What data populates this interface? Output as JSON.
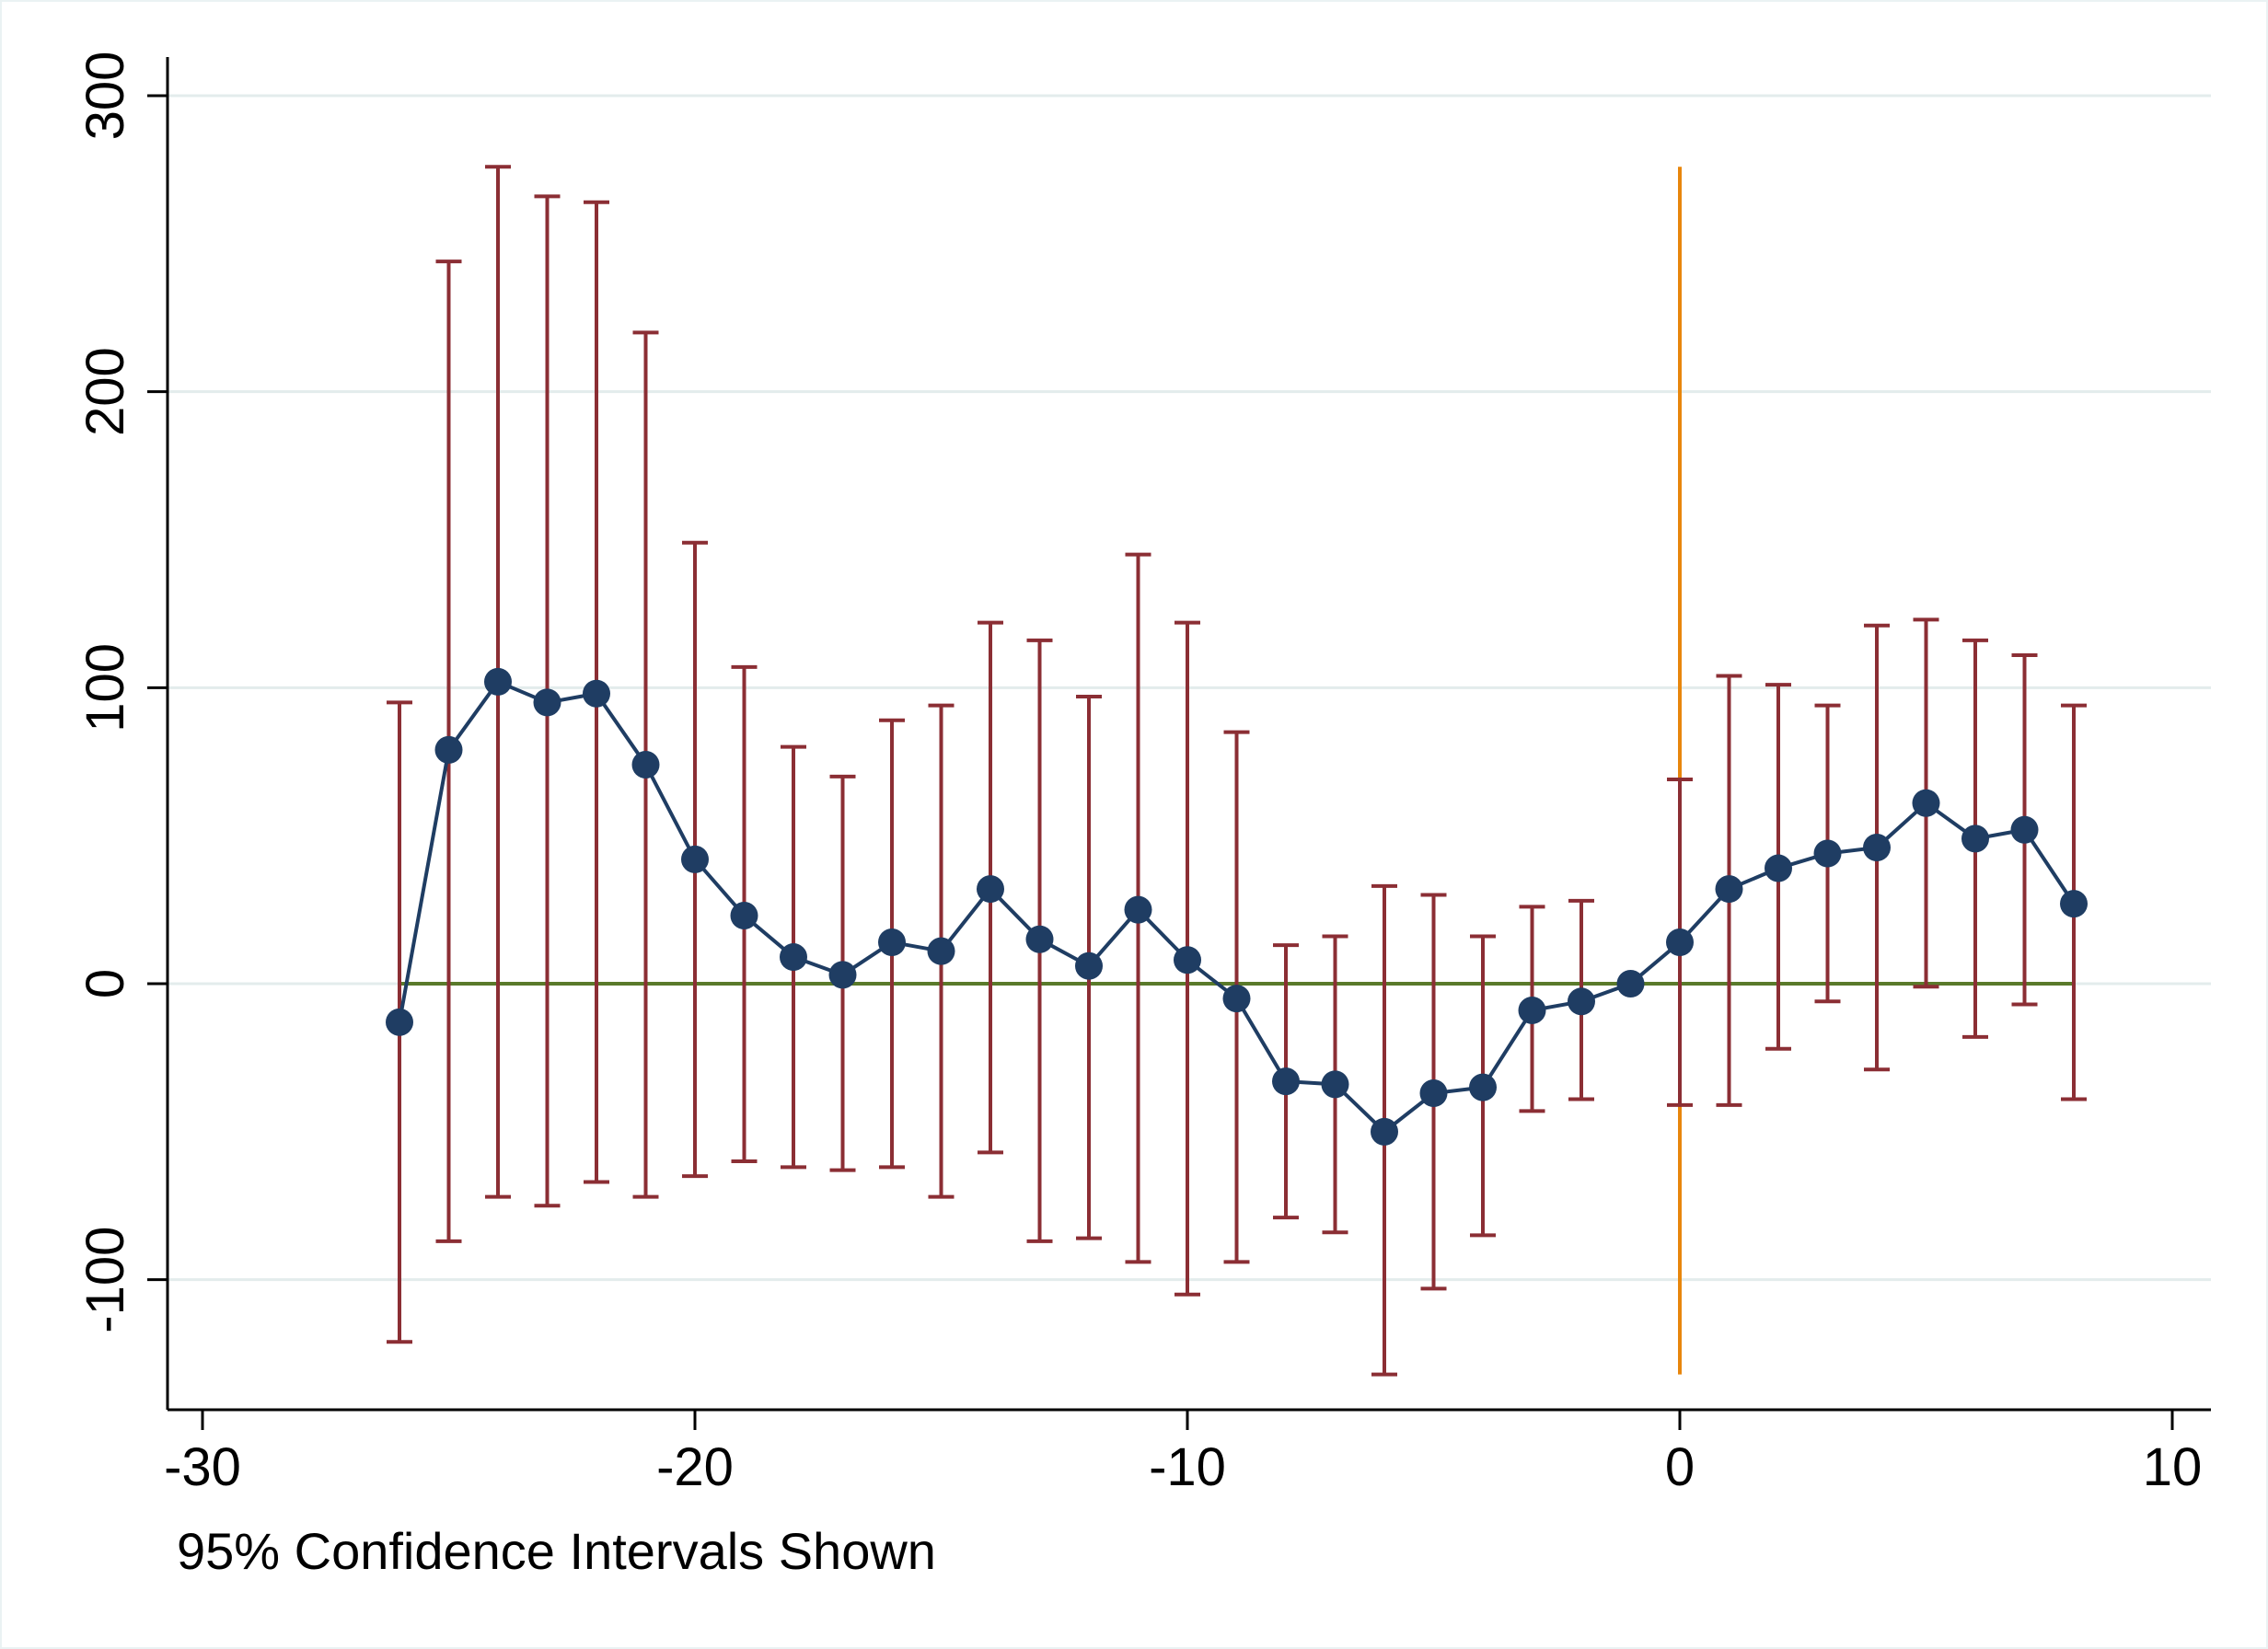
{
  "chart_data": {
    "type": "line",
    "title": "",
    "xlabel": "",
    "ylabel": "",
    "note": "95% Confidence Intervals Shown",
    "xlim": [
      -30,
      10
    ],
    "ylim": [
      -145,
      310
    ],
    "x_ticks": [
      -30,
      -20,
      -10,
      0,
      10
    ],
    "y_ticks": [
      -100,
      0,
      100,
      200,
      300
    ],
    "grid": true,
    "legend": "none",
    "reference_lines": [
      {
        "orientation": "horizontal",
        "value": 0,
        "x_from": -26,
        "x_to": 8,
        "color": "#5a7a2a"
      },
      {
        "orientation": "vertical",
        "value": 0,
        "y_from": -132,
        "y_to": 276,
        "color": "#e8860c"
      }
    ],
    "series": [
      {
        "type": "line-markers",
        "color": "#1f3d63",
        "x": [
          -26,
          -25,
          -24,
          -23,
          -22,
          -21,
          -20,
          -19,
          -18,
          -17,
          -16,
          -15,
          -14,
          -13,
          -12,
          -11,
          -10,
          -9,
          -8,
          -7,
          -6,
          -5,
          -4,
          -3,
          -2,
          -1,
          0,
          1,
          2,
          3,
          4,
          5,
          6,
          7,
          8
        ],
        "y": [
          -13,
          79,
          102,
          95,
          98,
          74,
          42,
          23,
          9,
          3,
          14,
          11,
          32,
          15,
          6,
          25,
          8,
          -5,
          -33,
          -34,
          -50,
          -37,
          -35,
          -9,
          -6,
          0,
          14,
          32,
          39,
          44,
          46,
          61,
          49,
          52,
          27
        ]
      },
      {
        "type": "error-bars",
        "color": "#8b2e34",
        "x": [
          -26,
          -25,
          -24,
          -23,
          -22,
          -21,
          -20,
          -19,
          -18,
          -17,
          -16,
          -15,
          -14,
          -13,
          -12,
          -11,
          -10,
          -9,
          -8,
          -7,
          -6,
          -5,
          -4,
          -3,
          -2,
          0,
          1,
          2,
          3,
          4,
          5,
          6,
          7,
          8
        ],
        "lower": [
          -121,
          -87,
          -72,
          -75,
          -67,
          -72,
          -65,
          -60,
          -62,
          -63,
          -62,
          -72,
          -57,
          -87,
          -86,
          -94,
          -105,
          -94,
          -79,
          -84,
          -132,
          -103,
          -85,
          -43,
          -39,
          -41,
          -41,
          -22,
          -6,
          -29,
          -1,
          -18,
          -7,
          -39
        ],
        "upper": [
          95,
          244,
          276,
          266,
          264,
          220,
          149,
          107,
          80,
          70,
          89,
          94,
          122,
          116,
          97,
          145,
          122,
          85,
          13,
          16,
          33,
          30,
          16,
          26,
          28,
          69,
          104,
          101,
          94,
          121,
          123,
          116,
          111,
          94
        ]
      }
    ],
    "colors": {
      "grid": "#e3ecec",
      "axis": "#000000",
      "frame": "#eaf2f3"
    }
  }
}
